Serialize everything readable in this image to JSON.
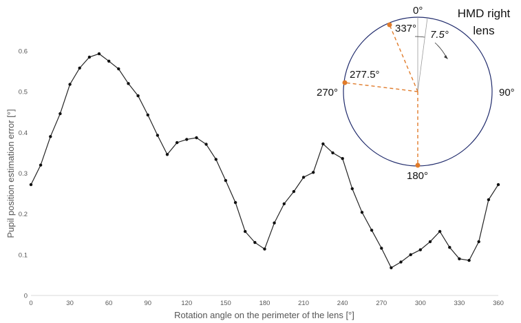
{
  "chart_data": {
    "type": "line",
    "title": "",
    "xlabel": "Rotation angle on the perimeter of the lens [°]",
    "ylabel": "Pupil position estimation error [°]",
    "xlim": [
      0,
      360
    ],
    "ylim": [
      0,
      0.6
    ],
    "xticks": [
      0,
      30,
      60,
      90,
      120,
      150,
      180,
      210,
      240,
      270,
      300,
      330,
      360
    ],
    "yticks": [
      0,
      0.1,
      0.2,
      0.3,
      0.4,
      0.5,
      0.6
    ],
    "grid": false,
    "series": [
      {
        "color": "#222222",
        "x": [
          0,
          7.5,
          15,
          22.5,
          30,
          37.5,
          45,
          52.5,
          60,
          67.5,
          75,
          82.5,
          90,
          97.5,
          105,
          112.5,
          120,
          127.5,
          135,
          142.5,
          150,
          157.5,
          165,
          172.5,
          180,
          187.5,
          195,
          202.5,
          210,
          217.5,
          225,
          232.5,
          240,
          247.5,
          255,
          262.5,
          270,
          277.5,
          285,
          292.5,
          300,
          307.5,
          315,
          322.5,
          330,
          337.5,
          345,
          352.5,
          360
        ],
        "values": [
          0.272,
          0.32,
          0.39,
          0.446,
          0.518,
          0.558,
          0.585,
          0.593,
          0.575,
          0.556,
          0.52,
          0.49,
          0.443,
          0.393,
          0.346,
          0.375,
          0.383,
          0.387,
          0.371,
          0.334,
          0.282,
          0.228,
          0.157,
          0.13,
          0.114,
          0.178,
          0.225,
          0.255,
          0.29,
          0.302,
          0.372,
          0.35,
          0.336,
          0.262,
          0.204,
          0.16,
          0.116,
          0.068,
          0.082,
          0.1,
          0.112,
          0.132,
          0.157,
          0.118,
          0.09,
          0.086,
          0.132,
          0.235,
          0.272
        ]
      }
    ],
    "inset": {
      "title_lines": [
        "HMD right",
        "lens"
      ],
      "angle_labels": [
        "0°",
        "90°",
        "180°",
        "270°"
      ],
      "marker_labels": [
        "337°",
        "277.5°"
      ],
      "rotation_step_label": "7.5°",
      "circle_color": "#1f2a6b",
      "arrow_color": "#e07b2a"
    }
  }
}
